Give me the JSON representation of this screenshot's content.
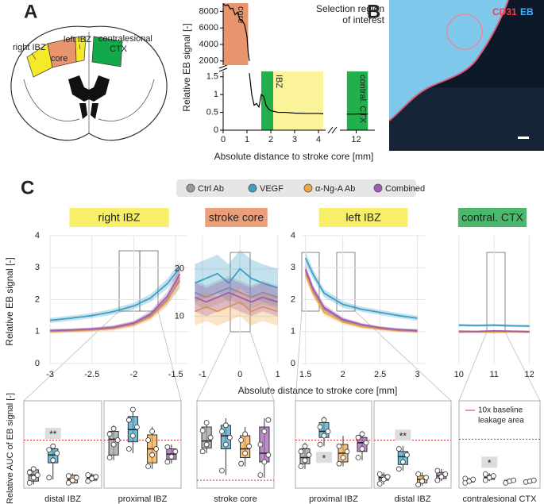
{
  "panel_labels": [
    "A",
    "B",
    "C"
  ],
  "brain_labels": {
    "right_ibz": "right IBZ",
    "core": "core",
    "left_ibz": "left IBZ",
    "contra": [
      "contralesional",
      "CTX"
    ]
  },
  "micrograph": {
    "stain1": "CD31",
    "stain2": "EB"
  },
  "legend": [
    {
      "name": "Ctrl Ab",
      "color": "#9a9a9a"
    },
    {
      "name": "VEGF",
      "color": "#3d9fc4"
    },
    {
      "name": "α-Ng-A Ab",
      "color": "#f2a541"
    },
    {
      "name": "Combined",
      "color": "#a05cb0"
    }
  ],
  "shared_axes": {
    "x_label": "Absolute distance to stroke core [mm]",
    "y_label_top": "Relative EB signal [-]",
    "y_label_bottom": "Relative AUC of EB signal [-]"
  },
  "chart_data": [
    {
      "type": "line",
      "grid": false,
      "xlim": [
        0,
        4.3
      ],
      "ylim": [
        1500,
        9000
      ],
      "yticks": [
        2000,
        4000,
        6000,
        8000
      ],
      "x": [
        0,
        0.1,
        0.2,
        0.3,
        0.4,
        0.5,
        0.6,
        0.7,
        0.8,
        0.9,
        1,
        1.05,
        1.1
      ],
      "series": [
        {
          "color": "#000000",
          "values": [
            8900,
            8700,
            8800,
            8300,
            8400,
            7600,
            7900,
            7000,
            6900,
            6400,
            5000,
            3000,
            2000
          ]
        }
      ],
      "regions": [
        {
          "label": "core",
          "x": [
            0,
            1.05
          ],
          "color": "#e8956e"
        }
      ]
    },
    {
      "type": "line",
      "grid": false,
      "annotation": [
        "Selection region",
        "of interest"
      ],
      "x_label": "Absolute distance to stroke core [mm]",
      "y_label": "Relative EB signal  [-]",
      "xlim": [
        0,
        4.3
      ],
      "xticks": [
        0,
        1,
        2,
        3,
        4
      ],
      "x2lim": [
        11.3,
        12.8
      ],
      "x2ticks": [
        12
      ],
      "ylim": [
        0,
        1.65
      ],
      "yticks": [
        0,
        0.5,
        1,
        1.5
      ],
      "x": [
        1.1,
        1.2,
        1.3,
        1.4,
        1.5,
        1.6,
        1.7,
        1.8,
        1.9,
        2,
        2.3,
        2.6,
        3,
        3.5,
        4,
        4.2
      ],
      "series": [
        {
          "color": "#000000",
          "values": [
            1.6,
            1,
            0.7,
            0.75,
            0.65,
            1,
            0.95,
            0.7,
            0.6,
            0.55,
            0.5,
            0.5,
            0.48,
            0.47,
            0.47,
            0.46
          ]
        },
        {
          "color": "#000000",
          "axis": "x2",
          "x": [
            11.6,
            11.9,
            12.2,
            12.5
          ],
          "values": [
            0.45,
            0.45,
            0.46,
            0.45
          ]
        }
      ],
      "regions": [
        {
          "label": "IBZ",
          "x": [
            1.6,
            4.2
          ],
          "color": "#fbf39a"
        },
        {
          "x": [
            1.6,
            2.1
          ],
          "color": "#22b04c"
        },
        {
          "label": "contral. CTX",
          "x": [
            11.6,
            12.5
          ],
          "color": "#22b04c",
          "axis": "x2"
        }
      ]
    },
    {
      "type": "line",
      "grid": true,
      "title": "right IBZ",
      "title_color": "#f7ef6a",
      "xlim": [
        -3,
        -1.35
      ],
      "xticks": [
        -3,
        -2.5,
        -2,
        -1.5
      ],
      "ylim": [
        0,
        4
      ],
      "yticks": [
        0,
        1,
        2,
        3,
        4
      ],
      "x": [
        -3,
        -2.75,
        -2.5,
        -2.25,
        -2,
        -1.8,
        -1.6,
        -1.45
      ],
      "series": [
        {
          "color": "#9a9a9a",
          "values": [
            1.02,
            1.04,
            1.07,
            1.12,
            1.25,
            1.5,
            2,
            2.6
          ],
          "error": [
            0.05,
            0.05,
            0.05,
            0.06,
            0.07,
            0.1,
            0.15,
            0.25
          ]
        },
        {
          "color": "#3d9fc4",
          "values": [
            1.35,
            1.42,
            1.5,
            1.62,
            1.8,
            2.05,
            2.5,
            3
          ],
          "error": [
            0.08,
            0.08,
            0.08,
            0.09,
            0.1,
            0.12,
            0.15,
            0.2
          ]
        },
        {
          "color": "#f2a541",
          "values": [
            1,
            1.02,
            1.05,
            1.1,
            1.22,
            1.45,
            1.95,
            2.7
          ],
          "error": [
            0.06,
            0.06,
            0.06,
            0.07,
            0.08,
            0.1,
            0.15,
            0.3
          ]
        },
        {
          "color": "#a05cb0",
          "values": [
            1.03,
            1.05,
            1.08,
            1.13,
            1.27,
            1.55,
            2.1,
            2.8
          ],
          "error": [
            0.05,
            0.05,
            0.05,
            0.06,
            0.07,
            0.1,
            0.15,
            0.25
          ]
        }
      ]
    },
    {
      "type": "line",
      "grid": true,
      "title": "stroke core",
      "title_color": "#e9a07a",
      "xlim": [
        -1.25,
        1.05
      ],
      "xticks": [
        -1,
        0,
        1
      ],
      "ylim": [
        0,
        27
      ],
      "yticks": [
        10,
        20
      ],
      "x": [
        -1.2,
        -0.9,
        -0.6,
        -0.3,
        0,
        0.3,
        0.6,
        1
      ],
      "series": [
        {
          "color": "#9a9a9a",
          "values": [
            15,
            14,
            15,
            16,
            15,
            14,
            15,
            14
          ],
          "error": [
            2.5,
            2.5,
            2.5,
            2.5,
            2.5,
            2.5,
            2.5,
            2.5
          ]
        },
        {
          "color": "#3d9fc4",
          "values": [
            17,
            18,
            19,
            17,
            20,
            18,
            17,
            16
          ],
          "error": [
            4,
            4,
            4,
            4,
            4,
            4,
            4,
            4
          ]
        },
        {
          "color": "#f2a541",
          "values": [
            11,
            12,
            11,
            12,
            13,
            11,
            12,
            11
          ],
          "error": [
            3,
            3,
            3,
            3,
            3,
            3,
            3,
            3
          ]
        },
        {
          "color": "#a05cb0",
          "values": [
            14,
            13,
            14,
            15,
            14,
            13,
            14,
            13
          ],
          "error": [
            3,
            3,
            3,
            3,
            3,
            3,
            3,
            3
          ]
        }
      ]
    },
    {
      "type": "line",
      "grid": true,
      "title": "left IBZ",
      "title_color": "#f7ef6a",
      "xlim": [
        1.45,
        3.1
      ],
      "xticks": [
        1.5,
        2,
        2.5,
        3
      ],
      "ylim": [
        0,
        4
      ],
      "yticks": [
        0,
        1,
        2,
        3,
        4
      ],
      "x": [
        1.5,
        1.6,
        1.75,
        2,
        2.25,
        2.5,
        2.75,
        3
      ],
      "series": [
        {
          "color": "#9a9a9a",
          "values": [
            2.9,
            2.3,
            1.7,
            1.35,
            1.2,
            1.1,
            1.05,
            1.02
          ],
          "error": [
            0.15,
            0.12,
            0.1,
            0.07,
            0.05,
            0.05,
            0.05,
            0.05
          ]
        },
        {
          "color": "#3d9fc4",
          "values": [
            3.3,
            2.8,
            2.2,
            1.85,
            1.7,
            1.6,
            1.5,
            1.42
          ],
          "error": [
            0.2,
            0.15,
            0.12,
            0.1,
            0.08,
            0.08,
            0.08,
            0.08
          ]
        },
        {
          "color": "#f2a541",
          "values": [
            2.8,
            2.2,
            1.6,
            1.3,
            1.15,
            1.08,
            1.03,
            1
          ],
          "error": [
            0.15,
            0.12,
            0.1,
            0.07,
            0.05,
            0.05,
            0.05,
            0.05
          ]
        },
        {
          "color": "#a05cb0",
          "values": [
            2.95,
            2.35,
            1.75,
            1.38,
            1.22,
            1.12,
            1.06,
            1.03
          ],
          "error": [
            0.15,
            0.12,
            0.1,
            0.07,
            0.05,
            0.05,
            0.05,
            0.05
          ]
        }
      ]
    },
    {
      "type": "line",
      "grid": true,
      "title": "contral. CTX",
      "title_color": "#4cb86e",
      "xlim": [
        9.6,
        12.3
      ],
      "xticks": [
        10,
        11,
        12
      ],
      "ylim": [
        0,
        4
      ],
      "x": [
        10,
        10.5,
        11,
        11.5,
        12
      ],
      "series": [
        {
          "color": "#9a9a9a",
          "values": [
            1,
            1,
            1.01,
            1,
            1
          ],
          "error": [
            0.03,
            0.03,
            0.03,
            0.03,
            0.03
          ]
        },
        {
          "color": "#3d9fc4",
          "values": [
            1.2,
            1.19,
            1.2,
            1.18,
            1.17
          ],
          "error": [
            0.04,
            0.04,
            0.04,
            0.04,
            0.04
          ]
        },
        {
          "color": "#f2a541",
          "values": [
            0.98,
            0.99,
            0.98,
            0.99,
            0.98
          ],
          "error": [
            0.03,
            0.03,
            0.03,
            0.03,
            0.03
          ]
        },
        {
          "color": "#a05cb0",
          "values": [
            1.01,
            1,
            1.02,
            1.01,
            1
          ],
          "error": [
            0.03,
            0.03,
            0.03,
            0.03,
            0.03
          ]
        }
      ]
    },
    {
      "type": "box",
      "title": "distal IBZ",
      "ylim": [
        0,
        100
      ],
      "threshold": 55,
      "annotations": [
        {
          "box": 1,
          "text": "**",
          "place": "above"
        }
      ],
      "boxes": [
        {
          "color": "#9a9a9a",
          "stats": [
            4,
            8,
            15,
            21,
            25
          ],
          "points": [
            6,
            12,
            15,
            18,
            22
          ]
        },
        {
          "color": "#3d9fc4",
          "stats": [
            10,
            29,
            38,
            45,
            50
          ],
          "points": [
            12,
            32,
            40,
            44,
            48
          ]
        },
        {
          "color": "#f2a541",
          "stats": [
            5,
            6,
            10,
            15,
            17
          ],
          "points": [
            6,
            9,
            12,
            14
          ]
        },
        {
          "color": "#a05cb0",
          "stats": [
            7,
            9,
            12,
            15,
            17
          ],
          "points": [
            8,
            11,
            13,
            15
          ]
        }
      ]
    },
    {
      "type": "box",
      "title": "proximal IBZ",
      "ylim": [
        0,
        100
      ],
      "threshold": 55,
      "boxes": [
        {
          "color": "#9a9a9a",
          "stats": [
            32,
            38,
            56,
            65,
            72
          ],
          "points": [
            35,
            50,
            55,
            62,
            68
          ]
        },
        {
          "color": "#3d9fc4",
          "stats": [
            40,
            53,
            67,
            82,
            93
          ],
          "points": [
            45,
            60,
            70,
            78,
            90
          ]
        },
        {
          "color": "#f2a541",
          "stats": [
            22,
            29,
            45,
            61,
            70
          ],
          "points": [
            25,
            38,
            45,
            55,
            65
          ]
        },
        {
          "color": "#a05cb0",
          "stats": [
            28,
            33,
            39,
            45,
            50
          ],
          "points": [
            30,
            36,
            42,
            47
          ]
        }
      ]
    },
    {
      "type": "box",
      "title": "stroke core",
      "ylim": [
        0,
        100
      ],
      "threshold": 9,
      "boxes": [
        {
          "color": "#9a9a9a",
          "stats": [
            40,
            46,
            54,
            70,
            78
          ],
          "points": [
            42,
            50,
            58,
            66,
            75
          ]
        },
        {
          "color": "#3d9fc4",
          "stats": [
            15,
            45,
            60,
            72,
            80
          ],
          "points": [
            20,
            50,
            58,
            65,
            72
          ]
        },
        {
          "color": "#f2a541",
          "stats": [
            25,
            35,
            45,
            60,
            70
          ],
          "points": [
            28,
            40,
            48,
            55,
            62
          ]
        },
        {
          "color": "#a05cb0",
          "stats": [
            12,
            30,
            40,
            70,
            80
          ],
          "points": [
            15,
            30,
            38,
            50,
            65,
            78
          ]
        }
      ]
    },
    {
      "type": "box",
      "title": "proximal IBZ",
      "ylim": [
        0,
        100
      ],
      "threshold": 55,
      "annotations": [
        {
          "box": 1,
          "text": "*",
          "place": "below"
        }
      ],
      "boxes": [
        {
          "color": "#9a9a9a",
          "stats": [
            22,
            28,
            35,
            45,
            52
          ],
          "points": [
            25,
            32,
            38,
            42,
            48
          ]
        },
        {
          "color": "#3d9fc4",
          "stats": [
            48,
            58,
            65,
            75,
            82
          ],
          "points": [
            50,
            60,
            65,
            70,
            78
          ]
        },
        {
          "color": "#f2a541",
          "stats": [
            25,
            30,
            40,
            50,
            60
          ],
          "points": [
            28,
            35,
            42,
            48
          ]
        },
        {
          "color": "#a05cb0",
          "stats": [
            32,
            42,
            52,
            58,
            65
          ],
          "points": [
            35,
            45,
            52,
            58,
            62
          ]
        }
      ]
    },
    {
      "type": "box",
      "title": "distal IBZ",
      "ylim": [
        0,
        100
      ],
      "threshold": 55,
      "annotations": [
        {
          "box": 1,
          "text": "**",
          "place": "above"
        }
      ],
      "boxes": [
        {
          "color": "#9a9a9a",
          "stats": [
            4,
            9,
            12,
            15,
            18
          ],
          "points": [
            5,
            10,
            13,
            16
          ]
        },
        {
          "color": "#3d9fc4",
          "stats": [
            20,
            27,
            36,
            42,
            48
          ],
          "points": [
            22,
            30,
            38,
            45
          ]
        },
        {
          "color": "#f2a541",
          "stats": [
            3,
            6,
            10,
            14,
            18
          ],
          "points": [
            4,
            8,
            12,
            16
          ]
        },
        {
          "color": "#a05cb0",
          "stats": [
            8,
            11,
            14,
            18,
            22
          ],
          "points": [
            9,
            13,
            16,
            20
          ]
        }
      ]
    },
    {
      "type": "box",
      "title": "contralesional CTX",
      "ylim": [
        0,
        100
      ],
      "threshold": 56,
      "threshold_label": [
        "10x baseline",
        "leakage area"
      ],
      "annotations": [
        {
          "box": 1,
          "text": "*",
          "place": "above"
        }
      ],
      "boxes": [
        {
          "color": "#9a9a9a",
          "stats": [
            5,
            7,
            9,
            10,
            12
          ],
          "points": [
            6,
            8,
            10,
            11
          ]
        },
        {
          "color": "#3d9fc4",
          "stats": [
            8,
            10,
            12,
            15,
            17
          ],
          "points": [
            9,
            12,
            14,
            16
          ]
        },
        {
          "color": "#f2a541",
          "stats": [
            6,
            7,
            8,
            9,
            10
          ],
          "points": [
            6,
            8,
            9
          ]
        },
        {
          "color": "#a05cb0",
          "stats": [
            6,
            7,
            8,
            9,
            10
          ],
          "points": [
            7,
            8,
            9
          ]
        }
      ]
    }
  ]
}
